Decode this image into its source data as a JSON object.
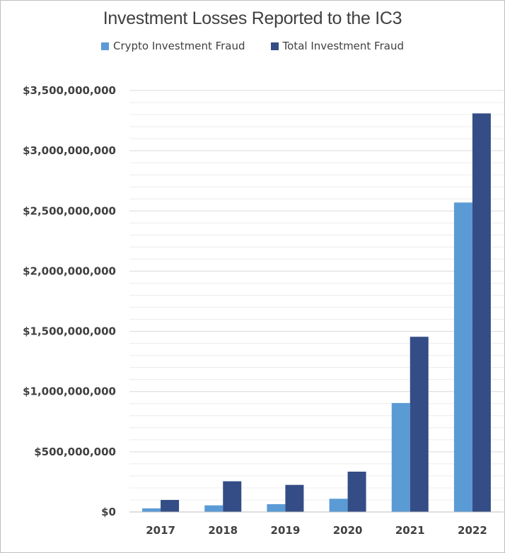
{
  "chart_data": {
    "type": "bar",
    "title": "Investment Losses Reported to the IC3",
    "categories": [
      "2017",
      "2018",
      "2019",
      "2020",
      "2021",
      "2022"
    ],
    "series": [
      {
        "name": "Crypto Investment Fraud",
        "color": "#5b9bd5",
        "values": [
          30000000,
          55000000,
          65000000,
          110000000,
          905000000,
          2570000000
        ]
      },
      {
        "name": "Total Investment Fraud",
        "color": "#344d86",
        "values": [
          100000000,
          255000000,
          225000000,
          335000000,
          1455000000,
          3310000000
        ]
      }
    ],
    "y_ticks": [
      "$0",
      "$500,000,000",
      "$1,000,000,000",
      "$1,500,000,000",
      "$2,000,000,000",
      "$2,500,000,000",
      "$3,000,000,000",
      "$3,500,000,000"
    ],
    "ylim": [
      0,
      3500000000
    ],
    "grid": true,
    "legend_position": "top"
  }
}
